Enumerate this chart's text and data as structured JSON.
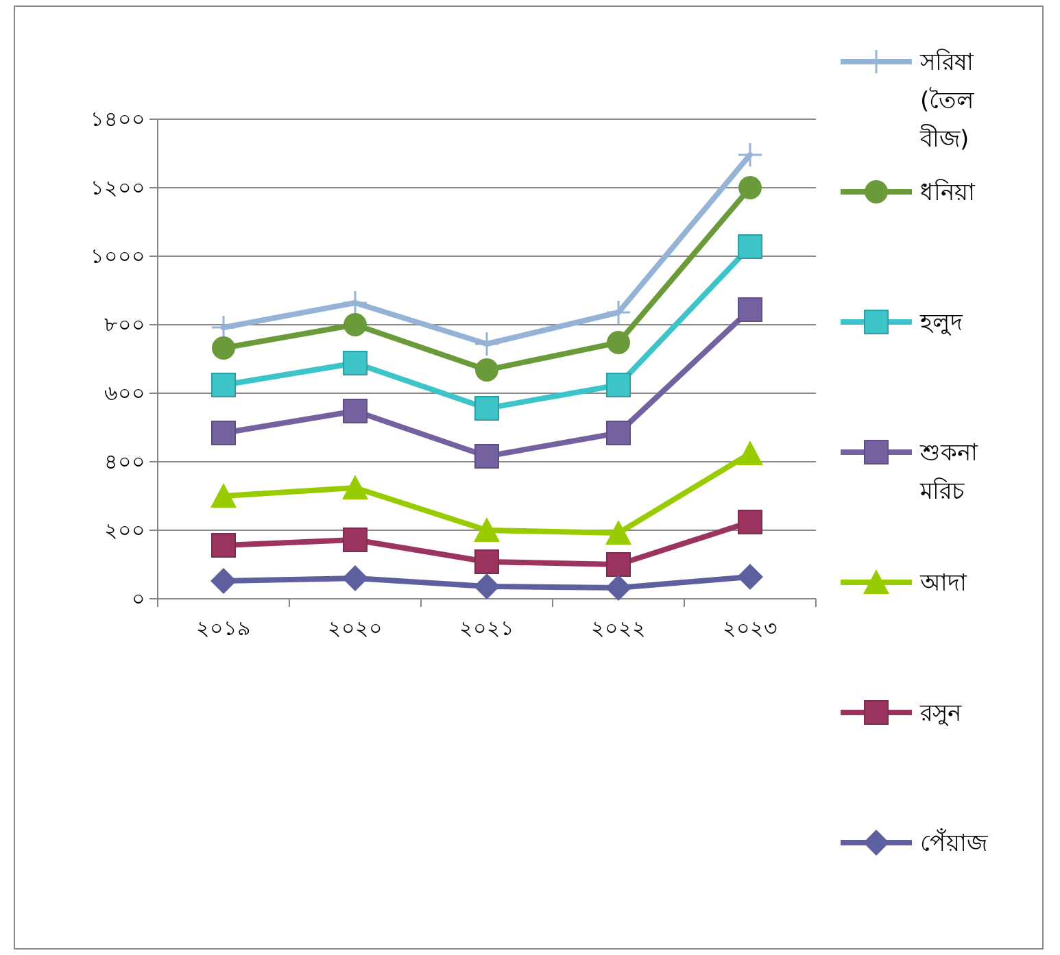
{
  "chart_data": {
    "type": "line",
    "categories": [
      "২০১৯",
      "২০২০",
      "২০২১",
      "২০২২",
      "২০২৩"
    ],
    "ylim": [
      0,
      1400
    ],
    "yticks": [
      {
        "value": 0,
        "label": "০"
      },
      {
        "value": 200,
        "label": "২০০"
      },
      {
        "value": 400,
        "label": "৪০০"
      },
      {
        "value": 600,
        "label": "৬০০"
      },
      {
        "value": 800,
        "label": "৮০০"
      },
      {
        "value": 1000,
        "label": "১০০০"
      },
      {
        "value": 1200,
        "label": "১২০০"
      },
      {
        "value": 1400,
        "label": "১৪০০"
      }
    ],
    "grid": "y",
    "legend": "right",
    "series": [
      {
        "name": "সরিষা (তৈল বীজ)",
        "color": "#95b3d7",
        "marker": "cross",
        "values": [
          792,
          864,
          744,
          836,
          1296
        ]
      },
      {
        "name": "ধনিয়া",
        "color": "#6a9a3a",
        "marker": "circle",
        "values": [
          732,
          800,
          668,
          748,
          1200
        ]
      },
      {
        "name": "হলুদ",
        "color": "#3cc4c8",
        "marker": "square",
        "values": [
          624,
          688,
          556,
          624,
          1028
        ]
      },
      {
        "name": "শুকনা মরিচ",
        "color": "#7461a0",
        "marker": "square",
        "values": [
          484,
          548,
          416,
          484,
          844
        ]
      },
      {
        "name": "আদা",
        "color": "#99cc00",
        "marker": "triangle",
        "values": [
          300,
          324,
          200,
          192,
          424
        ]
      },
      {
        "name": "রসুন",
        "color": "#9b3560",
        "marker": "square",
        "values": [
          156,
          172,
          108,
          100,
          224
        ]
      },
      {
        "name": "পেঁয়াজ",
        "color": "#5d5f9e",
        "marker": "diamond",
        "values": [
          52,
          60,
          36,
          32,
          64
        ]
      }
    ]
  }
}
